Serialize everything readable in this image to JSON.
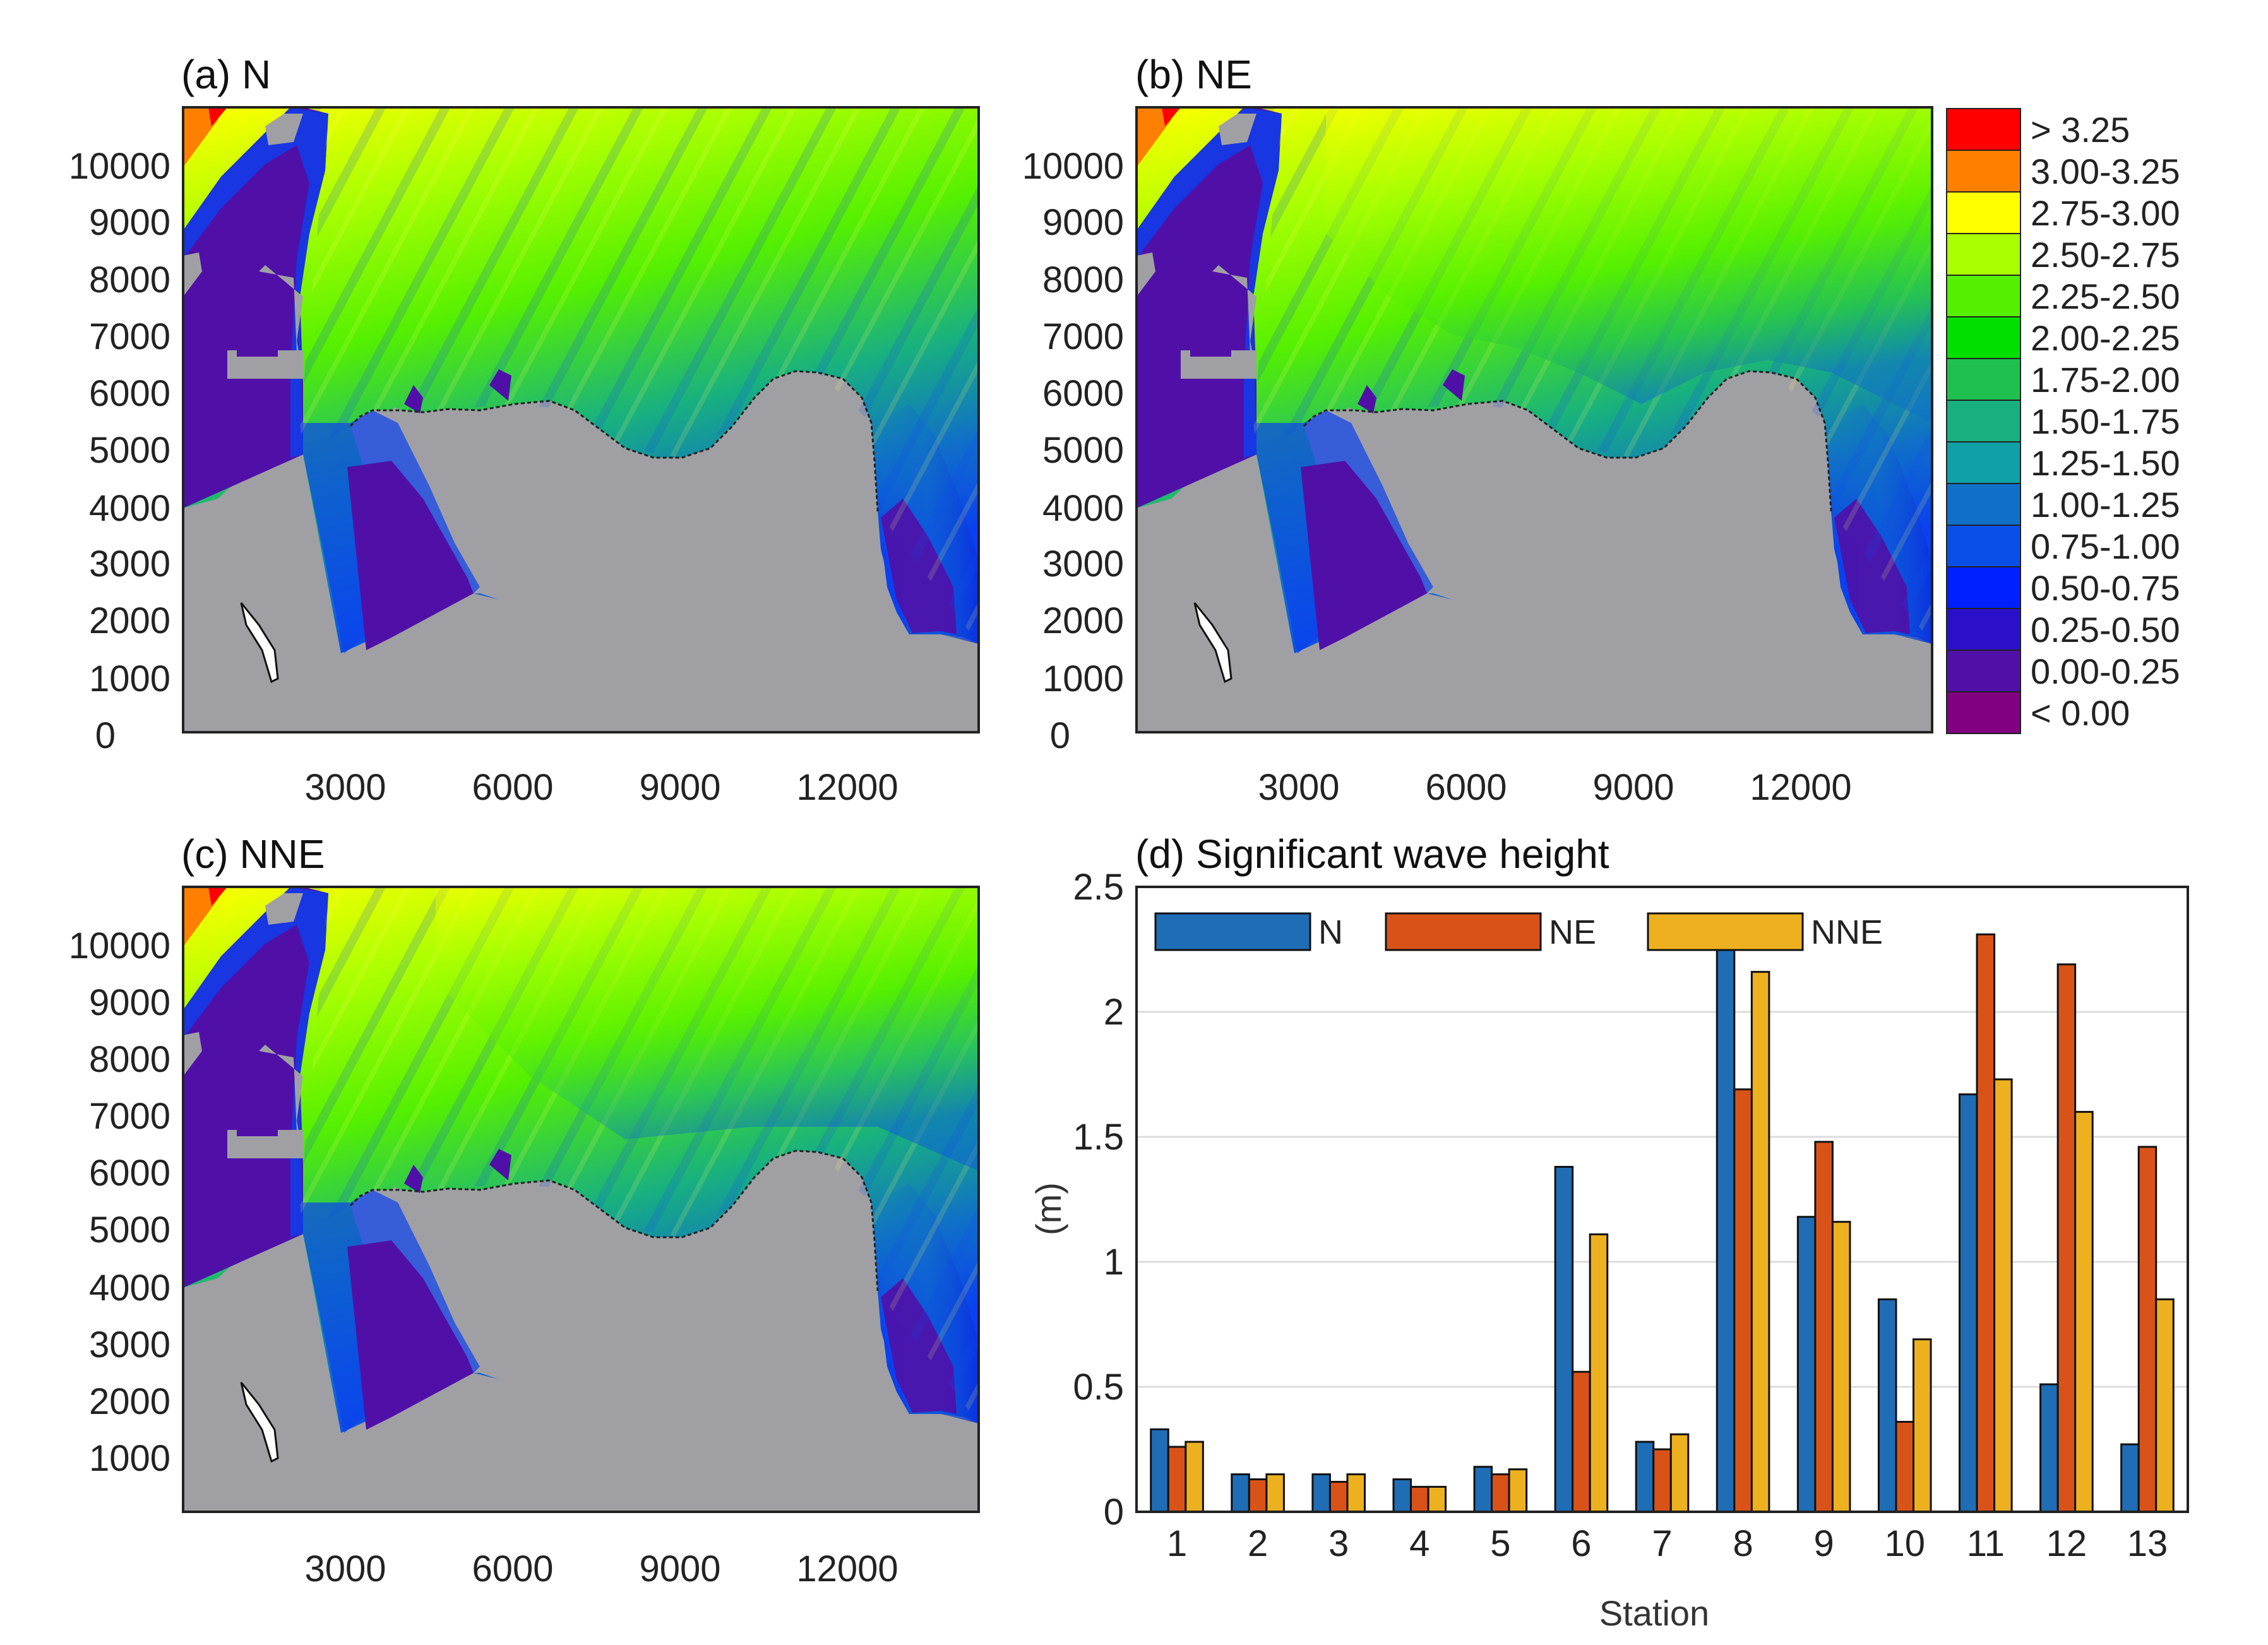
{
  "figure": {
    "maps": [
      {
        "title": "(a) N",
        "variant": "N"
      },
      {
        "title": "(b) NE",
        "variant": "NE"
      },
      {
        "title": "(c) NNE",
        "variant": "NNE"
      }
    ],
    "map_axes": {
      "x_ticks": [
        "3000",
        "6000",
        "9000",
        "12000"
      ],
      "y_ticks": [
        "10000",
        "9000",
        "8000",
        "7000",
        "6000",
        "5000",
        "4000",
        "3000",
        "2000",
        "1000",
        "0"
      ],
      "y_ticks_c": [
        "10000",
        "9000",
        "8000",
        "7000",
        "6000",
        "5000",
        "4000",
        "3000",
        "2000",
        "1000"
      ]
    },
    "colorbar": [
      {
        "label": "> 3.25",
        "color": "#ff0000"
      },
      {
        "label": "3.00-3.25",
        "color": "#ff8000"
      },
      {
        "label": "2.75-3.00",
        "color": "#ffff00"
      },
      {
        "label": "2.50-2.75",
        "color": "#aaff00"
      },
      {
        "label": "2.25-2.50",
        "color": "#55f000"
      },
      {
        "label": "2.00-2.25",
        "color": "#00e000"
      },
      {
        "label": "1.75-2.00",
        "color": "#20c050"
      },
      {
        "label": "1.50-1.75",
        "color": "#18b080"
      },
      {
        "label": "1.25-1.50",
        "color": "#10a0a8"
      },
      {
        "label": "1.00-1.25",
        "color": "#1070c8"
      },
      {
        "label": "0.75-1.00",
        "color": "#0a50e8"
      },
      {
        "label": "0.50-0.75",
        "color": "#0020ff"
      },
      {
        "label": "0.25-0.50",
        "color": "#2a10c8"
      },
      {
        "label": "0.00-0.25",
        "color": "#5010a8"
      },
      {
        "label": "< 0.00",
        "color": "#800080"
      }
    ],
    "colors": {
      "land": "#a0a0a4",
      "N": "#1f6db5",
      "NE": "#d95319",
      "NNE": "#edb120"
    }
  },
  "chart_data": {
    "type": "bar",
    "title": "(d) Significant wave height",
    "xlabel": "Station",
    "ylabel": "(m)",
    "ylim": [
      0,
      2.5
    ],
    "y_ticks": [
      "0",
      "0.5",
      "1",
      "1.5",
      "2",
      "2.5"
    ],
    "categories": [
      "1",
      "2",
      "3",
      "4",
      "5",
      "6",
      "7",
      "8",
      "9",
      "10",
      "11",
      "12",
      "13"
    ],
    "series": [
      {
        "name": "N",
        "values": [
          0.33,
          0.15,
          0.15,
          0.13,
          0.18,
          1.38,
          0.28,
          2.28,
          1.18,
          0.85,
          1.67,
          0.51,
          0.27
        ]
      },
      {
        "name": "NE",
        "values": [
          0.26,
          0.13,
          0.12,
          0.1,
          0.15,
          0.56,
          0.25,
          1.69,
          1.48,
          0.36,
          2.31,
          2.19,
          1.46
        ]
      },
      {
        "name": "NNE",
        "values": [
          0.28,
          0.15,
          0.15,
          0.1,
          0.17,
          1.11,
          0.31,
          2.16,
          1.16,
          0.69,
          1.73,
          1.6,
          0.85
        ]
      }
    ],
    "legend_position": "top"
  }
}
